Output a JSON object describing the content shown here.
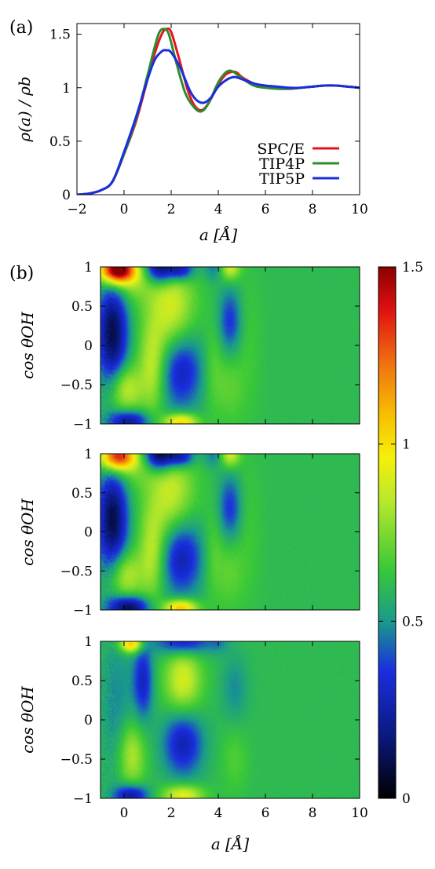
{
  "panel_labels": [
    "(a)",
    "(b)"
  ],
  "chart_data": [
    {
      "type": "line",
      "panel": "(a)",
      "title": "",
      "xlabel": "a [Å]",
      "ylabel": "ρ(a) / ρb",
      "xlim": [
        -2,
        10
      ],
      "ylim": [
        0,
        1.6
      ],
      "xticks": [
        "−2",
        "0",
        "2",
        "4",
        "6",
        "8",
        "10"
      ],
      "yticks": [
        "0",
        "0.5",
        "1",
        "1.5"
      ],
      "grid": false,
      "legend_position": "bottom-right",
      "colors": {
        "SPC/E": "#e8131a",
        "TIP4P": "#2e8b2e",
        "TIP5P": "#1a2ee0"
      },
      "series": [
        {
          "name": "SPC/E",
          "x": [
            -2,
            -1.5,
            -1,
            -0.5,
            0,
            0.5,
            1,
            1.3,
            1.6,
            1.8,
            2.0,
            2.3,
            2.7,
            3.0,
            3.3,
            3.6,
            4.0,
            4.3,
            4.6,
            4.8,
            5.0,
            5.5,
            6.0,
            6.5,
            7.0,
            7.5,
            8.0,
            8.5,
            9.0,
            9.5,
            10
          ],
          "y": [
            0.0,
            0.01,
            0.04,
            0.12,
            0.38,
            0.68,
            1.08,
            1.32,
            1.5,
            1.55,
            1.52,
            1.3,
            0.98,
            0.83,
            0.79,
            0.86,
            1.03,
            1.12,
            1.15,
            1.14,
            1.1,
            1.04,
            1.01,
            1.0,
            0.99,
            1.0,
            1.01,
            1.02,
            1.02,
            1.01,
            1.0
          ]
        },
        {
          "name": "TIP4P",
          "x": [
            -2,
            -1.5,
            -1,
            -0.5,
            0,
            0.5,
            1,
            1.3,
            1.5,
            1.7,
            1.9,
            2.2,
            2.6,
            3.0,
            3.3,
            3.6,
            4.0,
            4.3,
            4.5,
            4.7,
            5.0,
            5.5,
            6.0,
            6.5,
            7.0,
            7.5,
            8.0,
            8.5,
            9.0,
            9.5,
            10
          ],
          "y": [
            0.0,
            0.01,
            0.04,
            0.12,
            0.38,
            0.7,
            1.12,
            1.38,
            1.52,
            1.55,
            1.5,
            1.25,
            0.95,
            0.81,
            0.78,
            0.86,
            1.05,
            1.14,
            1.16,
            1.14,
            1.09,
            1.02,
            1.0,
            0.99,
            0.99,
            1.0,
            1.01,
            1.02,
            1.02,
            1.01,
            1.0
          ]
        },
        {
          "name": "TIP5P",
          "x": [
            -2,
            -1.5,
            -1,
            -0.5,
            0,
            0.5,
            1,
            1.3,
            1.6,
            1.8,
            2.0,
            2.4,
            2.8,
            3.1,
            3.4,
            3.7,
            4.0,
            4.4,
            4.7,
            5.0,
            5.5,
            6.0,
            6.5,
            7.0,
            7.5,
            8.0,
            8.5,
            9.0,
            9.5,
            10
          ],
          "y": [
            0.0,
            0.01,
            0.04,
            0.12,
            0.4,
            0.72,
            1.08,
            1.26,
            1.34,
            1.35,
            1.33,
            1.18,
            0.97,
            0.88,
            0.86,
            0.91,
            1.01,
            1.08,
            1.1,
            1.08,
            1.04,
            1.02,
            1.01,
            1.0,
            1.0,
            1.01,
            1.02,
            1.02,
            1.01,
            1.0
          ]
        }
      ]
    },
    {
      "type": "heatmap",
      "panel": "(b)",
      "models": [
        "SPC/E",
        "TIP4P",
        "TIP5P"
      ],
      "xlabel": "a [Å]",
      "ylabel": "cos θOH",
      "xlim": [
        -1,
        10
      ],
      "ylim": [
        -1,
        1
      ],
      "xticks": [
        "0",
        "2",
        "4",
        "6",
        "8",
        "10"
      ],
      "yticks": [
        "−1",
        "−0.5",
        "0",
        "0.5",
        "1"
      ],
      "colorbar": {
        "range": [
          0,
          1.5
        ],
        "ticks": [
          "0",
          "0.5",
          "1",
          "1.5"
        ]
      },
      "background_value": 0.6,
      "features": [
        [
          {
            "a": -0.3,
            "c": 0.97,
            "sa": 0.5,
            "sc": 0.12,
            "amp": 1.0
          },
          {
            "a": 0.2,
            "c": 0.85,
            "sa": 0.8,
            "sc": 0.2,
            "amp": 0.2
          },
          {
            "a": -0.5,
            "c": 0.15,
            "sa": 0.45,
            "sc": 0.5,
            "amp": -0.5
          },
          {
            "a": 1.5,
            "c": 1.0,
            "sa": 0.45,
            "sc": 0.15,
            "amp": -0.55
          },
          {
            "a": 2.4,
            "c": 0.97,
            "sa": 0.4,
            "sc": 0.1,
            "amp": -0.4
          },
          {
            "a": 1.2,
            "c": -0.3,
            "sa": 0.4,
            "sc": 0.4,
            "amp": 0.25
          },
          {
            "a": 2.0,
            "c": 0.45,
            "sa": 0.7,
            "sc": 0.45,
            "amp": 0.3
          },
          {
            "a": 0.0,
            "c": -0.55,
            "sa": 0.5,
            "sc": 0.22,
            "amp": 0.3
          },
          {
            "a": 2.4,
            "c": -0.3,
            "sa": 0.65,
            "sc": 0.35,
            "amp": -0.35
          },
          {
            "a": 2.4,
            "c": -0.98,
            "sa": 0.5,
            "sc": 0.08,
            "amp": 0.45
          },
          {
            "a": 0.2,
            "c": -0.97,
            "sa": 0.6,
            "sc": 0.1,
            "amp": -0.4
          },
          {
            "a": 3.8,
            "c": 1.0,
            "sa": 0.3,
            "sc": 0.12,
            "amp": -0.15
          },
          {
            "a": 4.5,
            "c": 1.0,
            "sa": 0.3,
            "sc": 0.12,
            "amp": 0.3
          },
          {
            "a": 4.5,
            "c": 0.3,
            "sa": 0.35,
            "sc": 0.3,
            "amp": -0.25
          },
          {
            "a": 4.5,
            "c": -0.5,
            "sa": 0.4,
            "sc": 0.35,
            "amp": 0.1
          },
          {
            "a": 3.8,
            "c": -0.3,
            "sa": 0.3,
            "sc": 0.4,
            "amp": 0.1
          },
          {
            "a": 5.3,
            "c": 0.0,
            "sa": 0.4,
            "sc": 0.7,
            "amp": 0.05
          }
        ],
        [
          {
            "a": -0.3,
            "c": 0.97,
            "sa": 0.5,
            "sc": 0.12,
            "amp": 0.75
          },
          {
            "a": 0.2,
            "c": 0.85,
            "sa": 0.8,
            "sc": 0.2,
            "amp": 0.15
          },
          {
            "a": -0.5,
            "c": 0.15,
            "sa": 0.45,
            "sc": 0.5,
            "amp": -0.5
          },
          {
            "a": 1.5,
            "c": 1.0,
            "sa": 0.45,
            "sc": 0.15,
            "amp": -0.6
          },
          {
            "a": 2.4,
            "c": 0.97,
            "sa": 0.4,
            "sc": 0.1,
            "amp": -0.4
          },
          {
            "a": 1.2,
            "c": -0.3,
            "sa": 0.4,
            "sc": 0.4,
            "amp": 0.25
          },
          {
            "a": 2.0,
            "c": 0.45,
            "sa": 0.7,
            "sc": 0.45,
            "amp": 0.28
          },
          {
            "a": 0.0,
            "c": -0.55,
            "sa": 0.5,
            "sc": 0.22,
            "amp": 0.28
          },
          {
            "a": 2.4,
            "c": -0.3,
            "sa": 0.65,
            "sc": 0.35,
            "amp": -0.37
          },
          {
            "a": 2.4,
            "c": -0.98,
            "sa": 0.5,
            "sc": 0.08,
            "amp": 0.5
          },
          {
            "a": 0.2,
            "c": -0.97,
            "sa": 0.6,
            "sc": 0.1,
            "amp": -0.5
          },
          {
            "a": 3.8,
            "c": 1.0,
            "sa": 0.3,
            "sc": 0.12,
            "amp": -0.15
          },
          {
            "a": 4.5,
            "c": 1.0,
            "sa": 0.3,
            "sc": 0.12,
            "amp": 0.3
          },
          {
            "a": 4.5,
            "c": 0.3,
            "sa": 0.35,
            "sc": 0.3,
            "amp": -0.25
          },
          {
            "a": 4.5,
            "c": -0.5,
            "sa": 0.4,
            "sc": 0.35,
            "amp": 0.1
          },
          {
            "a": 3.8,
            "c": -0.3,
            "sa": 0.3,
            "sc": 0.4,
            "amp": 0.1
          },
          {
            "a": 5.3,
            "c": 0.0,
            "sa": 0.4,
            "sc": 0.7,
            "amp": 0.05
          }
        ],
        [
          {
            "a": 0.3,
            "c": 0.97,
            "sa": 0.35,
            "sc": 0.08,
            "amp": 0.5
          },
          {
            "a": -0.3,
            "c": 0.2,
            "sa": 0.5,
            "sc": 0.7,
            "amp": -0.12
          },
          {
            "a": 0.8,
            "c": 0.5,
            "sa": 0.3,
            "sc": 0.35,
            "amp": -0.3
          },
          {
            "a": 0.3,
            "c": -0.45,
            "sa": 0.4,
            "sc": 0.3,
            "amp": 0.25
          },
          {
            "a": 0.3,
            "c": -0.97,
            "sa": 0.5,
            "sc": 0.1,
            "amp": -0.4
          },
          {
            "a": 2.5,
            "c": 1.0,
            "sa": 0.8,
            "sc": 0.12,
            "amp": -0.35
          },
          {
            "a": 2.5,
            "c": 0.5,
            "sa": 0.55,
            "sc": 0.3,
            "amp": 0.3
          },
          {
            "a": 2.5,
            "c": -0.3,
            "sa": 0.6,
            "sc": 0.3,
            "amp": -0.33
          },
          {
            "a": 2.5,
            "c": -0.97,
            "sa": 0.6,
            "sc": 0.1,
            "amp": 0.35
          },
          {
            "a": 4.0,
            "c": 1.0,
            "sa": 0.3,
            "sc": 0.1,
            "amp": -0.1
          },
          {
            "a": 4.7,
            "c": 0.4,
            "sa": 0.4,
            "sc": 0.3,
            "amp": -0.12
          },
          {
            "a": 4.7,
            "c": -0.5,
            "sa": 0.4,
            "sc": 0.3,
            "amp": 0.08
          }
        ]
      ]
    }
  ]
}
